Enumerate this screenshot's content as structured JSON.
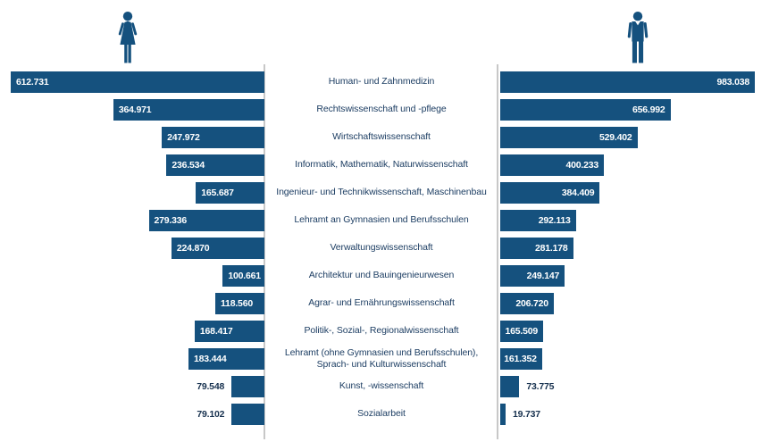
{
  "chart_data": {
    "type": "bar",
    "variant": "butterfly-pyramid",
    "legend_position": "icons-top",
    "grid": false,
    "categories": [
      "Human- und Zahnmedizin",
      "Rechtswissenschaft und -pflege",
      "Wirtschaftswissenschaft",
      "Informatik, Mathematik, Naturwissenschaft",
      "Ingenieur- und Technikwissenschaft, Maschinenbau",
      "Lehramt an Gymnasien und Berufsschulen",
      "Verwaltungswissenschaft",
      "Architektur und Bauingenieurwesen",
      "Agrar- und Ernährungswissenschaft",
      "Politik-, Sozial-, Regionalwissenschaft",
      "Lehramt (ohne Gymnasien und Berufsschulen),\nSprach- und Kulturwissenschaft",
      "Kunst, -wissenschaft",
      "Sozialarbeit"
    ],
    "series": [
      {
        "name": "women",
        "icon": "woman-icon",
        "side": "left",
        "axis_max": 612731,
        "values": [
          612731,
          364971,
          247972,
          236534,
          165687,
          279336,
          224870,
          100661,
          118560,
          168417,
          183444,
          79548,
          79102
        ],
        "labels": [
          "612.731",
          "364.971",
          "247.972",
          "236.534",
          "165.687",
          "279.336",
          "224.870",
          "100.661",
          "118.560",
          "168.417",
          "183.444",
          "79.548",
          "79.102"
        ]
      },
      {
        "name": "men",
        "icon": "man-icon",
        "side": "right",
        "axis_max": 983038,
        "values": [
          983038,
          656992,
          529402,
          400233,
          384409,
          292113,
          281178,
          249147,
          206720,
          165509,
          161352,
          73775,
          19737
        ],
        "labels": [
          "983.038",
          "656.992",
          "529.402",
          "400.233",
          "384.409",
          "292.113",
          "281.178",
          "249.147",
          "206.720",
          "165.509",
          "161.352",
          "73.775",
          "19.737"
        ]
      }
    ],
    "colors": {
      "bar": "#15517E",
      "category_text": "#1D3E63",
      "value_inside_text": "#FFFFFF",
      "value_outside_text": "#17314F",
      "divider_line": "#C8C8C8",
      "background": "#FFFFFF"
    }
  }
}
